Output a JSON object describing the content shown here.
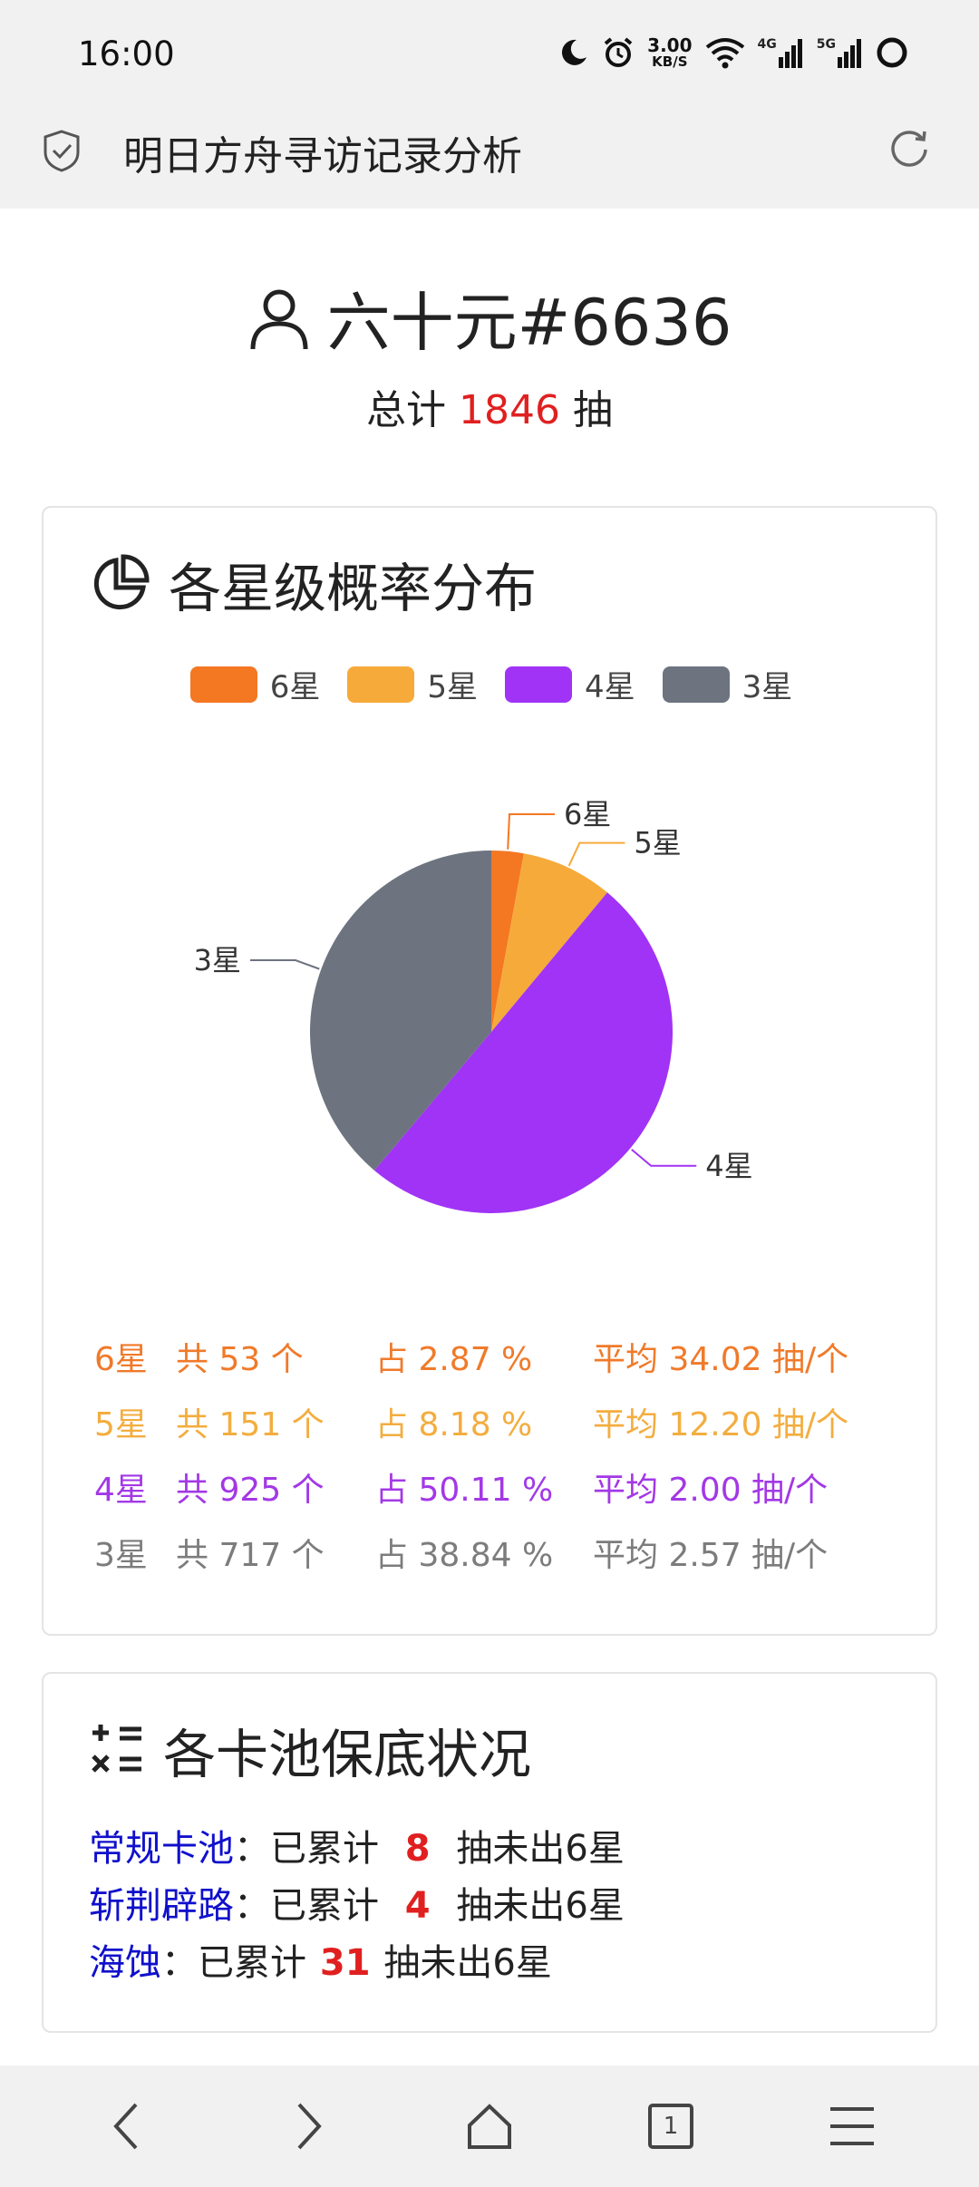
{
  "status": {
    "time": "16:00",
    "speed_top": "3.00",
    "speed_bottom": "KB/S",
    "net1": "4G",
    "net2": "5G"
  },
  "browser": {
    "title": "明日方舟寻访记录分析",
    "tab_count": "1"
  },
  "user": {
    "name": "六十元#6636",
    "total_prefix": "总计 ",
    "total": "1846",
    "total_suffix": " 抽"
  },
  "distribution": {
    "title": "各星级概率分布",
    "legend": [
      {
        "label": "6星",
        "color": "#f47722"
      },
      {
        "label": "5星",
        "color": "#f6aa3a"
      },
      {
        "label": "4星",
        "color": "#a033f5"
      },
      {
        "label": "3星",
        "color": "#6d7480"
      }
    ],
    "stats": [
      {
        "star": "6星",
        "count": "共 53 个",
        "pct": "占 2.87 %",
        "avg": "平均 34.02 抽/个",
        "color": "#f07a2a"
      },
      {
        "star": "5星",
        "count": "共 151 个",
        "pct": "占 8.18 %",
        "avg": "平均 12.20 抽/个",
        "color": "#f3ad3f"
      },
      {
        "star": "4星",
        "count": "共 925 个",
        "pct": "占 50.11 %",
        "avg": "平均 2.00 抽/个",
        "color": "#a338e6"
      },
      {
        "star": "3星",
        "count": "共 717 个",
        "pct": "占 38.84 %",
        "avg": "平均 2.57 抽/个",
        "color": "#7c7c7c"
      }
    ]
  },
  "chart_data": {
    "type": "pie",
    "title": "各星级概率分布",
    "categories": [
      "6星",
      "5星",
      "4星",
      "3星"
    ],
    "values": [
      53,
      151,
      925,
      717
    ],
    "colors": [
      "#f47722",
      "#f6aa3a",
      "#a033f5",
      "#6d7480"
    ],
    "legend_position": "top"
  },
  "pools": {
    "title": "各卡池保底状况",
    "items": [
      {
        "name": "常规卡池",
        "colon": "：",
        "mid": "已累计 ",
        "num": "8",
        "tail": " 抽未出6星"
      },
      {
        "name": "斩荆辟路",
        "colon": "：",
        "mid": "已累计 ",
        "num": "4",
        "tail": " 抽未出6星"
      },
      {
        "name": "海蚀",
        "colon": "：",
        "mid": "已累计 ",
        "num": "31",
        "tail": " 抽未出6星"
      }
    ]
  }
}
